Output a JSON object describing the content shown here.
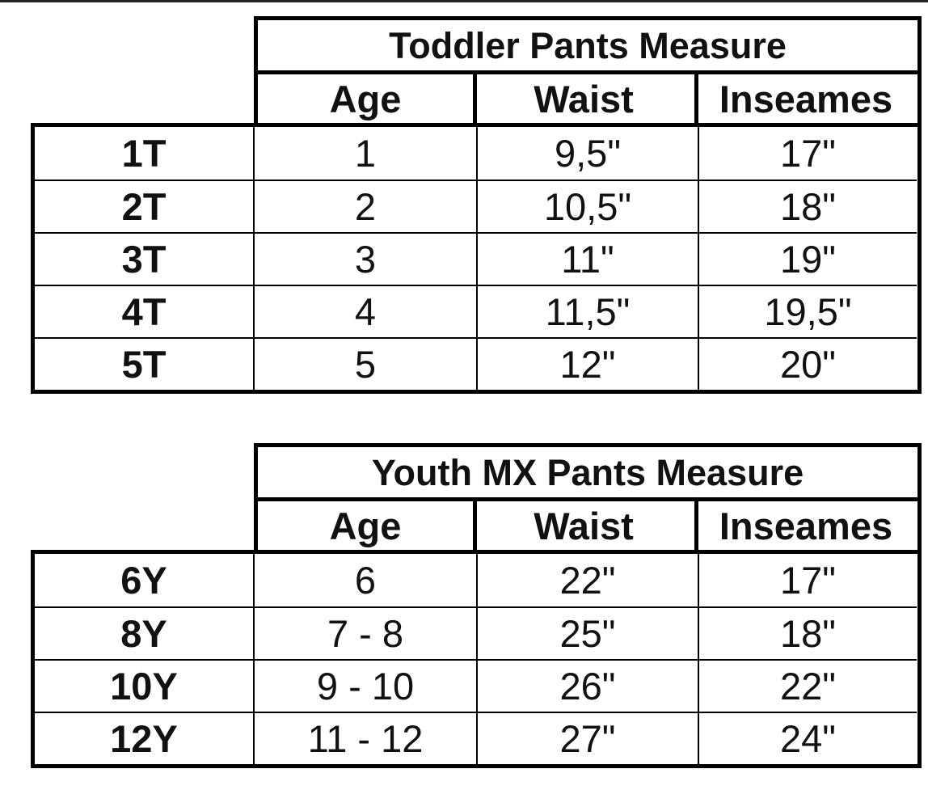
{
  "tables": [
    {
      "title": "Toddler Pants Measure",
      "headers": [
        "Age",
        "Waist",
        "Inseames"
      ],
      "rows": [
        {
          "size": "1T",
          "age": "1",
          "waist": "9,5\"",
          "inseam": "17\""
        },
        {
          "size": "2T",
          "age": "2",
          "waist": "10,5\"",
          "inseam": "18\""
        },
        {
          "size": "3T",
          "age": "3",
          "waist": "11\"",
          "inseam": "19\""
        },
        {
          "size": "4T",
          "age": "4",
          "waist": "11,5\"",
          "inseam": "19,5\""
        },
        {
          "size": "5T",
          "age": "5",
          "waist": "12\"",
          "inseam": "20\""
        }
      ]
    },
    {
      "title": "Youth MX Pants Measure",
      "headers": [
        "Age",
        "Waist",
        "Inseames"
      ],
      "rows": [
        {
          "size": "6Y",
          "age": "6",
          "waist": "22\"",
          "inseam": "17\""
        },
        {
          "size": "8Y",
          "age": "7 - 8",
          "waist": "25\"",
          "inseam": "18\""
        },
        {
          "size": "10Y",
          "age": "9 - 10",
          "waist": "26\"",
          "inseam": "22\""
        },
        {
          "size": "12Y",
          "age": "11 - 12",
          "waist": "27\"",
          "inseam": "24\""
        }
      ]
    }
  ]
}
